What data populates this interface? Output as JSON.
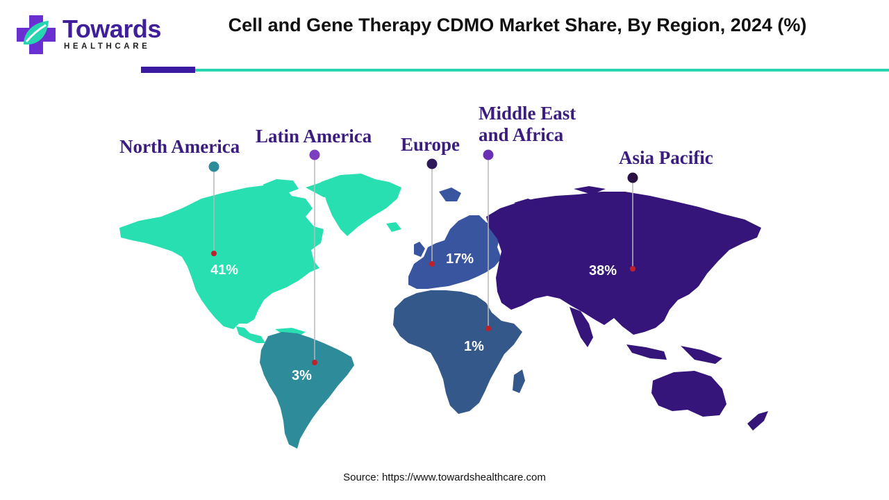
{
  "brand": {
    "name": "Towards",
    "tagline": "HEALTHCARE",
    "logo_icon": "medical-cross-leaf-icon",
    "colors": {
      "purple": "#3f1f9a",
      "teal": "#27d6b0"
    }
  },
  "title": "Cell and Gene Therapy CDMO Market Share, By Region, 2024 (%)",
  "regions": [
    {
      "name": "North America",
      "share": "41%",
      "color": "#27dfb0"
    },
    {
      "name": "Latin America",
      "share": "3%",
      "color": "#2e8b9a"
    },
    {
      "name": "Europe",
      "share": "17%",
      "color": "#3a55a0"
    },
    {
      "name": "Middle East and Africa",
      "share": "1%",
      "color": "#34588a"
    },
    {
      "name": "Asia Pacific",
      "share": "38%",
      "color": "#35157a"
    }
  ],
  "marker_colors": {
    "North America": "#2e8b9a",
    "Latin America": "#7b3fbf",
    "Europe": "#2e1a5a",
    "Middle East and Africa": "#6a2fb5",
    "Asia Pacific": "#2a1245",
    "anchor": "#c0202a"
  },
  "source": "Source: https://www.towardshealthcare.com"
}
